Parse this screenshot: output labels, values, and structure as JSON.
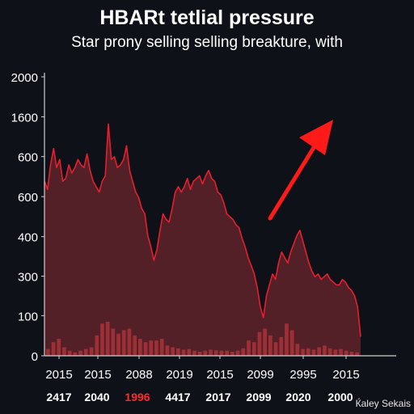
{
  "chart_data": {
    "type": "area",
    "title": "HBARt tetlial pressure",
    "subtitle": "Star prony selling selling breakture, with",
    "y_ticks": [
      "2000",
      "1600",
      "600",
      "600",
      "400",
      "300",
      "100",
      "0"
    ],
    "x_tick_labels_row1": [
      "2015",
      "2015",
      "2088",
      "2019",
      "2015",
      "2099",
      "2995",
      "2015"
    ],
    "x_tick_labels_row2": [
      "2417",
      "2040",
      "1996",
      "4417",
      "2017",
      "2099",
      "2020",
      "2000"
    ],
    "x_tick_labels_row2_highlight_index": 2,
    "series": [
      {
        "type": "area",
        "values": [
          640,
          610,
          700,
          760,
          690,
          720,
          640,
          650,
          700,
          670,
          690,
          720,
          700,
          690,
          740,
          680,
          640,
          620,
          600,
          640,
          660,
          850,
          720,
          730,
          690,
          700,
          720,
          770,
          680,
          640,
          600,
          580,
          540,
          520,
          440,
          400,
          350,
          390,
          460,
          520,
          500,
          490,
          540,
          600,
          620,
          600,
          620,
          650,
          610,
          640,
          650,
          660,
          630,
          660,
          680,
          650,
          640,
          600,
          590,
          560,
          520,
          510,
          500,
          480,
          470,
          430,
          400,
          360,
          330,
          300,
          250,
          180,
          140,
          220,
          260,
          300,
          280,
          340,
          380,
          360,
          340,
          380,
          410,
          440,
          460,
          420,
          380,
          340,
          310,
          290,
          300,
          280,
          290,
          300,
          280,
          270,
          260,
          260,
          280,
          270,
          250,
          240,
          220,
          180,
          70
        ]
      },
      {
        "type": "bar",
        "values": [
          20,
          40,
          50,
          25,
          15,
          10,
          15,
          20,
          25,
          60,
          95,
          100,
          80,
          65,
          75,
          80,
          60,
          50,
          40,
          45,
          45,
          50,
          30,
          25,
          22,
          18,
          20,
          15,
          12,
          15,
          18,
          16,
          15,
          15,
          12,
          15,
          22,
          45,
          40,
          70,
          80,
          60,
          40,
          55,
          95,
          75,
          35,
          20,
          22,
          18,
          25,
          30,
          22,
          18,
          20,
          15,
          12,
          10
        ]
      }
    ],
    "ylim": [
      0,
      2000
    ],
    "colors": {
      "background": "#0e1218",
      "area_fill": "#5a2228",
      "line": "#e81e2e",
      "bars": "#b8343e",
      "arrow": "#ff1a1a",
      "axis": "#cfcfcf",
      "text": "#ffffff",
      "highlight_text": "#ff2a2a"
    },
    "arrow_direction": "up-right",
    "grid": false
  },
  "credit": "Ќaley Sekais"
}
